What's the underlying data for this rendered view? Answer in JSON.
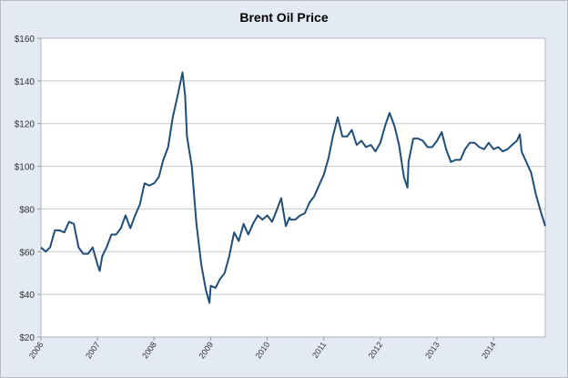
{
  "chart_data": {
    "type": "line",
    "title": "Brent Oil Price",
    "xlabel": "",
    "ylabel": "",
    "ylim": [
      20,
      160
    ],
    "xlim": [
      "2006-01-01",
      "2014-12-01"
    ],
    "y_ticks": [
      "$20",
      "$40",
      "$60",
      "$80",
      "$100",
      "$120",
      "$140",
      "$160"
    ],
    "y_tick_values": [
      20,
      40,
      60,
      80,
      100,
      120,
      140,
      160
    ],
    "x_ticks": [
      "2006",
      "2007",
      "2008",
      "2009",
      "2010",
      "2011",
      "2012",
      "2013",
      "2014"
    ],
    "grid": "horizontal",
    "legend": "none",
    "colors": {
      "line": "#1f4e79",
      "background": "#e3eaf4",
      "plot": "#ffffff",
      "grid": "#c8c8c8"
    },
    "series": [
      {
        "x": [
          "2006-01-01",
          "2006-02-01",
          "2006-03-01",
          "2006-04-01",
          "2006-05-01",
          "2006-06-01",
          "2006-07-01",
          "2006-08-01",
          "2006-09-01",
          "2006-10-01",
          "2006-11-01",
          "2006-12-01",
          "2007-01-01",
          "2007-01-15",
          "2007-02-01",
          "2007-03-01",
          "2007-04-01",
          "2007-05-01",
          "2007-06-01",
          "2007-07-01",
          "2007-08-01",
          "2007-09-01",
          "2007-10-01",
          "2007-11-01",
          "2007-12-01",
          "2008-01-01",
          "2008-02-01",
          "2008-03-01",
          "2008-04-01",
          "2008-05-01",
          "2008-06-01",
          "2008-07-03",
          "2008-07-20",
          "2008-08-01",
          "2008-09-01",
          "2008-10-01",
          "2008-11-01",
          "2008-12-01",
          "2008-12-24",
          "2009-01-01",
          "2009-02-01",
          "2009-03-01",
          "2009-04-01",
          "2009-05-01",
          "2009-06-01",
          "2009-07-01",
          "2009-08-01",
          "2009-09-01",
          "2009-10-01",
          "2009-11-01",
          "2009-12-01",
          "2010-01-01",
          "2010-02-01",
          "2010-03-01",
          "2010-04-01",
          "2010-05-01",
          "2010-05-25",
          "2010-06-01",
          "2010-07-01",
          "2010-08-01",
          "2010-09-01",
          "2010-10-01",
          "2010-11-01",
          "2010-12-01",
          "2011-01-01",
          "2011-02-01",
          "2011-03-01",
          "2011-04-01",
          "2011-05-01",
          "2011-06-01",
          "2011-07-01",
          "2011-08-01",
          "2011-09-01",
          "2011-10-01",
          "2011-11-01",
          "2011-12-01",
          "2012-01-01",
          "2012-02-01",
          "2012-03-01",
          "2012-04-01",
          "2012-05-01",
          "2012-06-01",
          "2012-06-25",
          "2012-07-01",
          "2012-08-01",
          "2012-09-01",
          "2012-10-01",
          "2012-11-01",
          "2012-12-01",
          "2013-01-01",
          "2013-02-01",
          "2013-03-01",
          "2013-04-01",
          "2013-05-01",
          "2013-06-01",
          "2013-07-01",
          "2013-08-01",
          "2013-09-01",
          "2013-10-01",
          "2013-11-01",
          "2013-12-01",
          "2014-01-01",
          "2014-02-01",
          "2014-03-01",
          "2014-04-01",
          "2014-05-01",
          "2014-06-01",
          "2014-06-20",
          "2014-07-01",
          "2014-08-01",
          "2014-09-01",
          "2014-10-01",
          "2014-11-01",
          "2014-12-01"
        ],
        "values": [
          62,
          60,
          62,
          70,
          70,
          69,
          74,
          73,
          62,
          59,
          59,
          62,
          54,
          51,
          58,
          62,
          68,
          68,
          71,
          77,
          71,
          77,
          82,
          92,
          91,
          92,
          95,
          103,
          109,
          123,
          133,
          144,
          133,
          114,
          100,
          73,
          54,
          42,
          36,
          44,
          43,
          47,
          50,
          58,
          69,
          65,
          73,
          68,
          73,
          77,
          75,
          77,
          74,
          79,
          85,
          72,
          76,
          75,
          75,
          77,
          78,
          83,
          86,
          91,
          96,
          104,
          114,
          123,
          114,
          114,
          117,
          110,
          112,
          109,
          110,
          107,
          111,
          119,
          125,
          119,
          110,
          95,
          90,
          102,
          113,
          113,
          112,
          109,
          109,
          112,
          116,
          108,
          102,
          103,
          103,
          108,
          111,
          111,
          109,
          108,
          111,
          108,
          109,
          107,
          108,
          110,
          112,
          115,
          107,
          102,
          97,
          87,
          79,
          72
        ]
      }
    ]
  }
}
